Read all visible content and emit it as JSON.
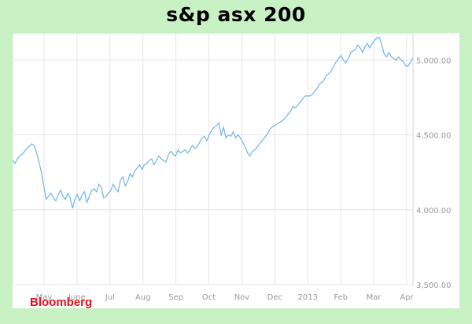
{
  "chart_data": {
    "type": "line",
    "title": "s&p asx 200",
    "brand": "Bloomberg",
    "xlabel": "",
    "ylabel": "",
    "x_ticks": [
      "May",
      "June",
      "Jul",
      "Aug",
      "Sep",
      "Oct",
      "Nov",
      "Dec",
      "2013",
      "Feb",
      "Mar",
      "Apr"
    ],
    "y_ticks": [
      "3,500.00",
      "4,000.00",
      "4,500.00",
      "5,000.00"
    ],
    "y_tick_values": [
      3500,
      4000,
      4500,
      5000
    ],
    "ylim": [
      3500,
      5180
    ],
    "grid": true,
    "line_color": "#6fb4e8",
    "series": [
      {
        "values": [
          4330,
          4310,
          4340,
          4360,
          4370,
          4390,
          4410,
          4425,
          4440,
          4430,
          4380,
          4320,
          4250,
          4160,
          4070,
          4090,
          4110,
          4080,
          4060,
          4100,
          4130,
          4090,
          4070,
          4110,
          4080,
          4010,
          4070,
          4100,
          4060,
          4100,
          4120,
          4050,
          4090,
          4130,
          4140,
          4120,
          4170,
          4150,
          4080,
          4090,
          4110,
          4130,
          4170,
          4140,
          4120,
          4200,
          4220,
          4160,
          4190,
          4240,
          4220,
          4260,
          4280,
          4300,
          4270,
          4300,
          4310,
          4330,
          4340,
          4300,
          4330,
          4360,
          4340,
          4330,
          4320,
          4370,
          4390,
          4370,
          4360,
          4400,
          4380,
          4390,
          4400,
          4380,
          4400,
          4430,
          4410,
          4420,
          4450,
          4480,
          4490,
          4460,
          4500,
          4530,
          4550,
          4560,
          4580,
          4500,
          4550,
          4480,
          4500,
          4490,
          4520,
          4480,
          4500,
          4480,
          4450,
          4420,
          4380,
          4360,
          4390,
          4400,
          4420,
          4440,
          4460,
          4480,
          4500,
          4530,
          4550,
          4560,
          4570,
          4580,
          4590,
          4600,
          4620,
          4640,
          4660,
          4690,
          4680,
          4700,
          4720,
          4740,
          4760,
          4760,
          4760,
          4770,
          4790,
          4810,
          4840,
          4850,
          4870,
          4900,
          4910,
          4930,
          4960,
          4990,
          5010,
          5030,
          5000,
          4980,
          5010,
          5050,
          5060,
          5070,
          5100,
          5080,
          5050,
          5090,
          5110,
          5080,
          5110,
          5130,
          5150,
          5150,
          5100,
          5040,
          5020,
          5050,
          5020,
          5010,
          5000,
          5020,
          5000,
          4990,
          4960,
          4960,
          4990,
          5010
        ]
      }
    ]
  }
}
